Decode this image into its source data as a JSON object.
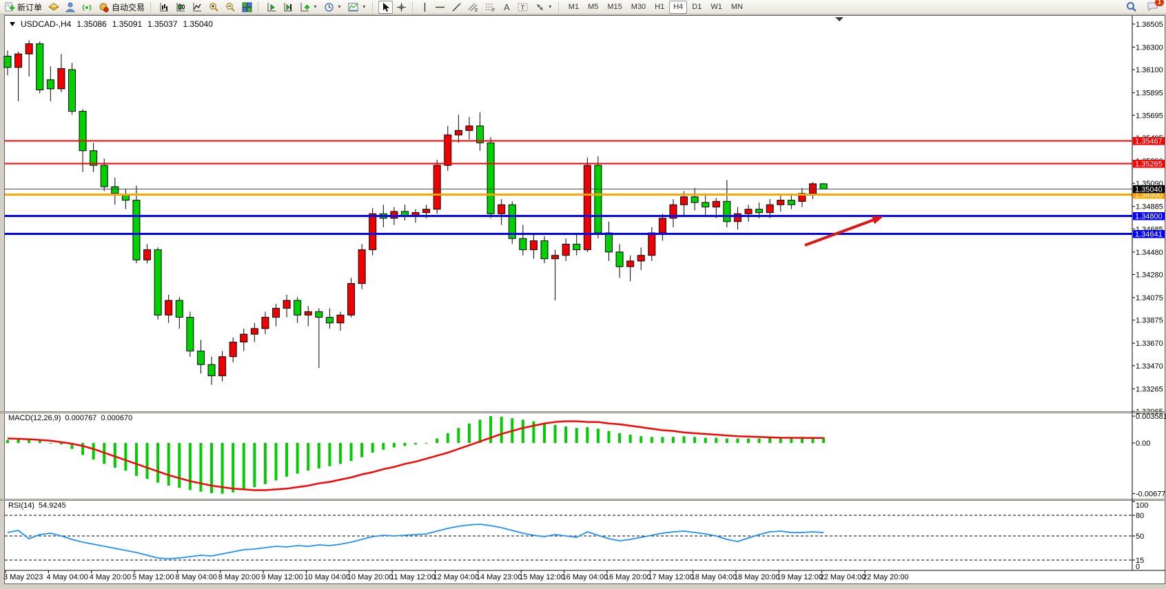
{
  "toolbar": {
    "new_order_label": "新订单",
    "auto_trading_label": "自动交易",
    "timeframes": [
      "M1",
      "M5",
      "M15",
      "M30",
      "H1",
      "H4",
      "D1",
      "W1",
      "MN"
    ],
    "selected_timeframe": "H4",
    "notification_count": "1"
  },
  "chart_data": {
    "type": "candlestick",
    "title": {
      "symbol_period": "USDCAD-,H4",
      "open": "1.35086",
      "high": "1.35091",
      "low": "1.35037",
      "close": "1.35040"
    },
    "color_convention": "red=bullish, green=bearish",
    "candle_colors": {
      "bull": "#f20000",
      "bear": "#00d200",
      "wick": "#000000"
    },
    "price_axis_ticks": [
      "1.36505",
      "1.36300",
      "1.36100",
      "1.35895",
      "1.35695",
      "1.35495",
      "1.35290",
      "1.35090",
      "1.34885",
      "1.34685",
      "1.34480",
      "1.34280",
      "1.34075",
      "1.33875",
      "1.33670",
      "1.33470",
      "1.33265",
      "1.33065"
    ],
    "time_axis_ticks": [
      "3 May 2023",
      "4 May 04:00",
      "4 May 20:00",
      "5 May 12:00",
      "8 May 04:00",
      "8 May 20:00",
      "9 May 12:00",
      "10 May 04:00",
      "10 May 20:00",
      "11 May 12:00",
      "12 May 04:00",
      "14 May 23:00",
      "15 May 12:00",
      "16 May 04:00",
      "16 May 20:00",
      "17 May 12:00",
      "18 May 04:00",
      "18 May 20:00",
      "19 May 12:00",
      "22 May 04:00",
      "22 May 20:00"
    ],
    "candles": [
      [
        1.3622,
        1.3627,
        1.3605,
        1.3612
      ],
      [
        1.3612,
        1.3626,
        1.3582,
        1.3624
      ],
      [
        1.3624,
        1.3636,
        1.3604,
        1.3633
      ],
      [
        1.3633,
        1.3635,
        1.3589,
        1.3592
      ],
      [
        1.3601,
        1.3613,
        1.3582,
        1.3593
      ],
      [
        1.3593,
        1.3624,
        1.359,
        1.3611
      ],
      [
        1.361,
        1.3616,
        1.357,
        1.3573
      ],
      [
        1.3573,
        1.3575,
        1.3519,
        1.3538
      ],
      [
        1.3538,
        1.3545,
        1.3519,
        1.3525
      ],
      [
        1.3525,
        1.3531,
        1.3502,
        1.3506
      ],
      [
        1.3506,
        1.3514,
        1.349,
        1.35
      ],
      [
        1.3499,
        1.3504,
        1.3486,
        1.3494
      ],
      [
        1.3494,
        1.3507,
        1.3438,
        1.3441
      ],
      [
        1.3441,
        1.3455,
        1.3438,
        1.345
      ],
      [
        1.345,
        1.3452,
        1.3388,
        1.3392
      ],
      [
        1.3392,
        1.341,
        1.3385,
        1.3405
      ],
      [
        1.3405,
        1.3408,
        1.338,
        1.339
      ],
      [
        1.339,
        1.3395,
        1.3355,
        1.336
      ],
      [
        1.336,
        1.337,
        1.334,
        1.3348
      ],
      [
        1.3348,
        1.3355,
        1.333,
        1.3338
      ],
      [
        1.3338,
        1.336,
        1.3333,
        1.3355
      ],
      [
        1.3355,
        1.3372,
        1.335,
        1.3368
      ],
      [
        1.3368,
        1.338,
        1.336,
        1.3375
      ],
      [
        1.3375,
        1.3385,
        1.3368,
        1.338
      ],
      [
        1.338,
        1.3395,
        1.3375,
        1.339
      ],
      [
        1.339,
        1.3402,
        1.3382,
        1.3398
      ],
      [
        1.3398,
        1.341,
        1.339,
        1.3405
      ],
      [
        1.3405,
        1.3408,
        1.3385,
        1.3392
      ],
      [
        1.3392,
        1.34,
        1.3382,
        1.3395
      ],
      [
        1.3395,
        1.3398,
        1.3345,
        1.339
      ],
      [
        1.339,
        1.3398,
        1.338,
        1.3385
      ],
      [
        1.3385,
        1.3395,
        1.3378,
        1.3392
      ],
      [
        1.3392,
        1.3425,
        1.339,
        1.342
      ],
      [
        1.342,
        1.3455,
        1.3415,
        1.345
      ],
      [
        1.345,
        1.3487,
        1.3445,
        1.3482
      ],
      [
        1.3482,
        1.349,
        1.347,
        1.3478
      ],
      [
        1.3478,
        1.3488,
        1.3472,
        1.3484
      ],
      [
        1.3484,
        1.349,
        1.3476,
        1.348
      ],
      [
        1.348,
        1.3486,
        1.3474,
        1.3483
      ],
      [
        1.3483,
        1.349,
        1.3478,
        1.3486
      ],
      [
        1.3486,
        1.353,
        1.3482,
        1.3525
      ],
      [
        1.3525,
        1.356,
        1.352,
        1.3552
      ],
      [
        1.3552,
        1.357,
        1.3545,
        1.3556
      ],
      [
        1.3556,
        1.3568,
        1.3548,
        1.356
      ],
      [
        1.356,
        1.3572,
        1.3538,
        1.3545
      ],
      [
        1.3545,
        1.355,
        1.3478,
        1.3482
      ],
      [
        1.3482,
        1.3495,
        1.3472,
        1.349
      ],
      [
        1.349,
        1.3493,
        1.3455,
        1.346
      ],
      [
        1.346,
        1.3472,
        1.3445,
        1.345
      ],
      [
        1.345,
        1.3465,
        1.3442,
        1.3458
      ],
      [
        1.3458,
        1.3462,
        1.3438,
        1.3442
      ],
      [
        1.3442,
        1.345,
        1.3405,
        1.3445
      ],
      [
        1.3445,
        1.346,
        1.344,
        1.3455
      ],
      [
        1.3455,
        1.3465,
        1.3445,
        1.345
      ],
      [
        1.345,
        1.3532,
        1.3448,
        1.3525
      ],
      [
        1.3525,
        1.3533,
        1.346,
        1.3465
      ],
      [
        1.3465,
        1.3475,
        1.344,
        1.3448
      ],
      [
        1.3448,
        1.3455,
        1.3425,
        1.3435
      ],
      [
        1.3435,
        1.3445,
        1.3422,
        1.344
      ],
      [
        1.344,
        1.3452,
        1.3432,
        1.3445
      ],
      [
        1.3445,
        1.347,
        1.344,
        1.3465
      ],
      [
        1.3465,
        1.3482,
        1.3458,
        1.3478
      ],
      [
        1.3478,
        1.3495,
        1.347,
        1.349
      ],
      [
        1.349,
        1.3502,
        1.348,
        1.3497
      ],
      [
        1.3497,
        1.3505,
        1.3485,
        1.3492
      ],
      [
        1.3492,
        1.35,
        1.348,
        1.3488
      ],
      [
        1.3488,
        1.3496,
        1.3478,
        1.3493
      ],
      [
        1.3493,
        1.3512,
        1.347,
        1.3475
      ],
      [
        1.3475,
        1.3488,
        1.3468,
        1.3482
      ],
      [
        1.3482,
        1.349,
        1.3475,
        1.3486
      ],
      [
        1.3486,
        1.3492,
        1.3478,
        1.3483
      ],
      [
        1.3483,
        1.3495,
        1.3478,
        1.349
      ],
      [
        1.349,
        1.3498,
        1.3484,
        1.3494
      ],
      [
        1.3494,
        1.35,
        1.3486,
        1.349
      ],
      [
        1.3493,
        1.3505,
        1.3488,
        1.35
      ],
      [
        1.35,
        1.351,
        1.3495,
        1.35086
      ],
      [
        1.35086,
        1.35091,
        1.35037,
        1.3504
      ]
    ],
    "levels": [
      {
        "label": "1.35467",
        "value": 1.35467,
        "color": "#ff0000",
        "width": 2
      },
      {
        "label": "1.35265",
        "value": 1.35265,
        "color": "#ff0000",
        "width": 2
      },
      {
        "label": "1.34990",
        "value": 1.3499,
        "color": "#ffa500",
        "width": 3
      },
      {
        "label": "1.34800",
        "value": 1.348,
        "color": "#0000ff",
        "width": 3
      },
      {
        "label": "1.34641",
        "value": 1.34641,
        "color": "#0000ff",
        "width": 3
      }
    ],
    "bid": {
      "label": "1.35040",
      "value": 1.3504,
      "tag_color": "#000000"
    },
    "indicators": {
      "macd": {
        "label": "MACD(12,26,9)",
        "main_value": "0.000767",
        "signal_value": "0.000670",
        "axis": [
          "0.003581",
          "0.00",
          "-0.006775"
        ],
        "axis_values": [
          0.003581,
          0,
          -0.006775
        ],
        "hist_color": "#00cc00",
        "signal_color": "#ff0000",
        "histogram": [
          0.0004,
          0.0005,
          0.0006,
          0.0003,
          0.0,
          -0.0002,
          -0.0008,
          -0.0016,
          -0.0022,
          -0.0028,
          -0.0033,
          -0.0037,
          -0.0044,
          -0.0048,
          -0.0053,
          -0.0057,
          -0.006,
          -0.0063,
          -0.0065,
          -0.0067,
          -0.006775,
          -0.0066,
          -0.0063,
          -0.0059,
          -0.0055,
          -0.005,
          -0.0045,
          -0.0041,
          -0.0037,
          -0.0034,
          -0.0031,
          -0.0028,
          -0.0024,
          -0.0019,
          -0.0013,
          -0.0009,
          -0.0006,
          -0.0004,
          -0.0002,
          0.0,
          0.0006,
          0.0013,
          0.002,
          0.0026,
          0.0031,
          0.003581,
          0.0035,
          0.0033,
          0.0031,
          0.0029,
          0.0026,
          0.0024,
          0.0022,
          0.002,
          0.0021,
          0.0019,
          0.0016,
          0.0013,
          0.0011,
          0.0009,
          0.0008,
          0.0008,
          0.0008,
          0.0009,
          0.0008,
          0.0007,
          0.0007,
          0.0006,
          0.0006,
          0.0006,
          0.0006,
          0.0007,
          0.0007,
          0.0007,
          0.0008,
          0.0008,
          0.000767
        ],
        "signal": [
          0.0006,
          0.00055,
          0.0005,
          0.0004,
          0.0003,
          0.0001,
          -0.0001,
          -0.0004,
          -0.0008,
          -0.0013,
          -0.0018,
          -0.0023,
          -0.0028,
          -0.0033,
          -0.0038,
          -0.0043,
          -0.0047,
          -0.0051,
          -0.0054,
          -0.0057,
          -0.0059,
          -0.0061,
          -0.0062,
          -0.0063,
          -0.0063,
          -0.0062,
          -0.0061,
          -0.0059,
          -0.0057,
          -0.0054,
          -0.0052,
          -0.0049,
          -0.0046,
          -0.0042,
          -0.0039,
          -0.0035,
          -0.0032,
          -0.0028,
          -0.0025,
          -0.0021,
          -0.0017,
          -0.0013,
          -0.0008,
          -0.0003,
          0.0002,
          0.0007,
          0.0012,
          0.0016,
          0.002,
          0.0023,
          0.0026,
          0.0028,
          0.0029,
          0.0029,
          0.0028,
          0.0028,
          0.0026,
          0.0025,
          0.0023,
          0.0021,
          0.0019,
          0.0017,
          0.0016,
          0.0014,
          0.0013,
          0.0012,
          0.0011,
          0.001,
          0.0009,
          0.00085,
          0.0008,
          0.00075,
          0.0007,
          0.00069,
          0.00068,
          0.00067,
          0.00067
        ]
      },
      "rsi": {
        "label": "RSI(14)",
        "value": "54.9245",
        "axis": [
          "100",
          "80",
          "50",
          "15",
          "0"
        ],
        "axis_values": [
          100,
          80,
          50,
          15,
          0
        ],
        "dashed_levels": [
          80,
          50,
          15
        ],
        "color": "#1e90ff",
        "series": [
          55,
          58,
          46,
          52,
          54,
          50,
          45,
          41,
          38,
          35,
          32,
          29,
          26,
          22,
          18,
          17,
          18,
          20,
          22,
          21,
          24,
          27,
          30,
          31,
          33,
          35,
          34,
          36,
          35,
          37,
          36,
          38,
          41,
          45,
          49,
          51,
          50,
          51,
          52,
          53,
          57,
          61,
          64,
          66,
          67,
          65,
          62,
          58,
          54,
          51,
          49,
          52,
          50,
          48,
          56,
          51,
          46,
          43,
          45,
          48,
          51,
          54,
          56,
          57,
          55,
          53,
          50,
          45,
          42,
          47,
          52,
          56,
          57,
          55,
          55,
          56,
          54.9245
        ]
      }
    },
    "arrow": {
      "color": "#e01515",
      "from": [
        1168,
        356
      ],
      "to": [
        1282,
        314
      ]
    },
    "shift_marker_x": 1218
  }
}
